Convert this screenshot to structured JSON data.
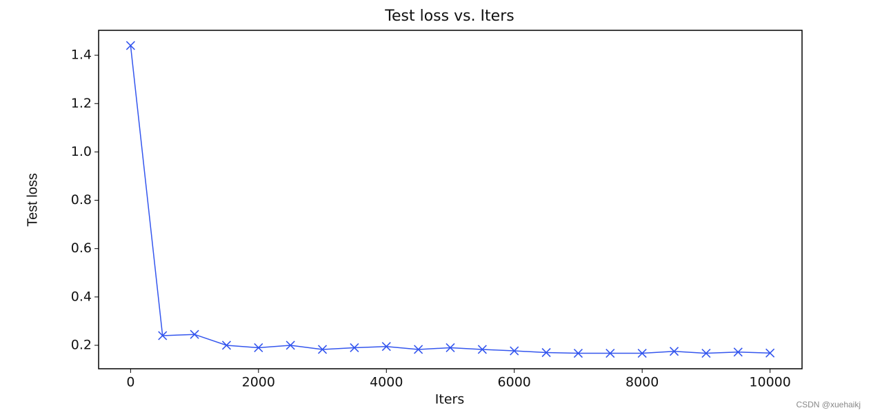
{
  "chart_data": {
    "type": "line",
    "title": "Test loss  vs. Iters",
    "x_label": "Iters",
    "y_label": "Test loss",
    "x": [
      0,
      500,
      1000,
      1500,
      2000,
      2500,
      3000,
      3500,
      4000,
      4500,
      5000,
      5500,
      6000,
      6500,
      7000,
      7500,
      8000,
      8500,
      9000,
      9500,
      10000
    ],
    "series": [
      {
        "name": "Test loss",
        "color": "#3355ee",
        "marker": "x",
        "values": [
          1.44,
          0.24,
          0.245,
          0.2,
          0.19,
          0.2,
          0.183,
          0.19,
          0.195,
          0.183,
          0.19,
          0.183,
          0.177,
          0.17,
          0.167,
          0.167,
          0.167,
          0.175,
          0.167,
          0.172,
          0.168
        ]
      }
    ],
    "xlim": [
      -500,
      10500
    ],
    "xticks": [
      0,
      2000,
      4000,
      6000,
      8000,
      10000
    ],
    "ylim": [
      0.103,
      1.503
    ],
    "yticks": [
      0.2,
      0.4,
      0.6,
      0.8,
      {
        "value": 1,
        "label": "1.0"
      },
      1.2,
      1.4
    ],
    "grid": false
  },
  "watermark": "CSDN @xuehaikj"
}
